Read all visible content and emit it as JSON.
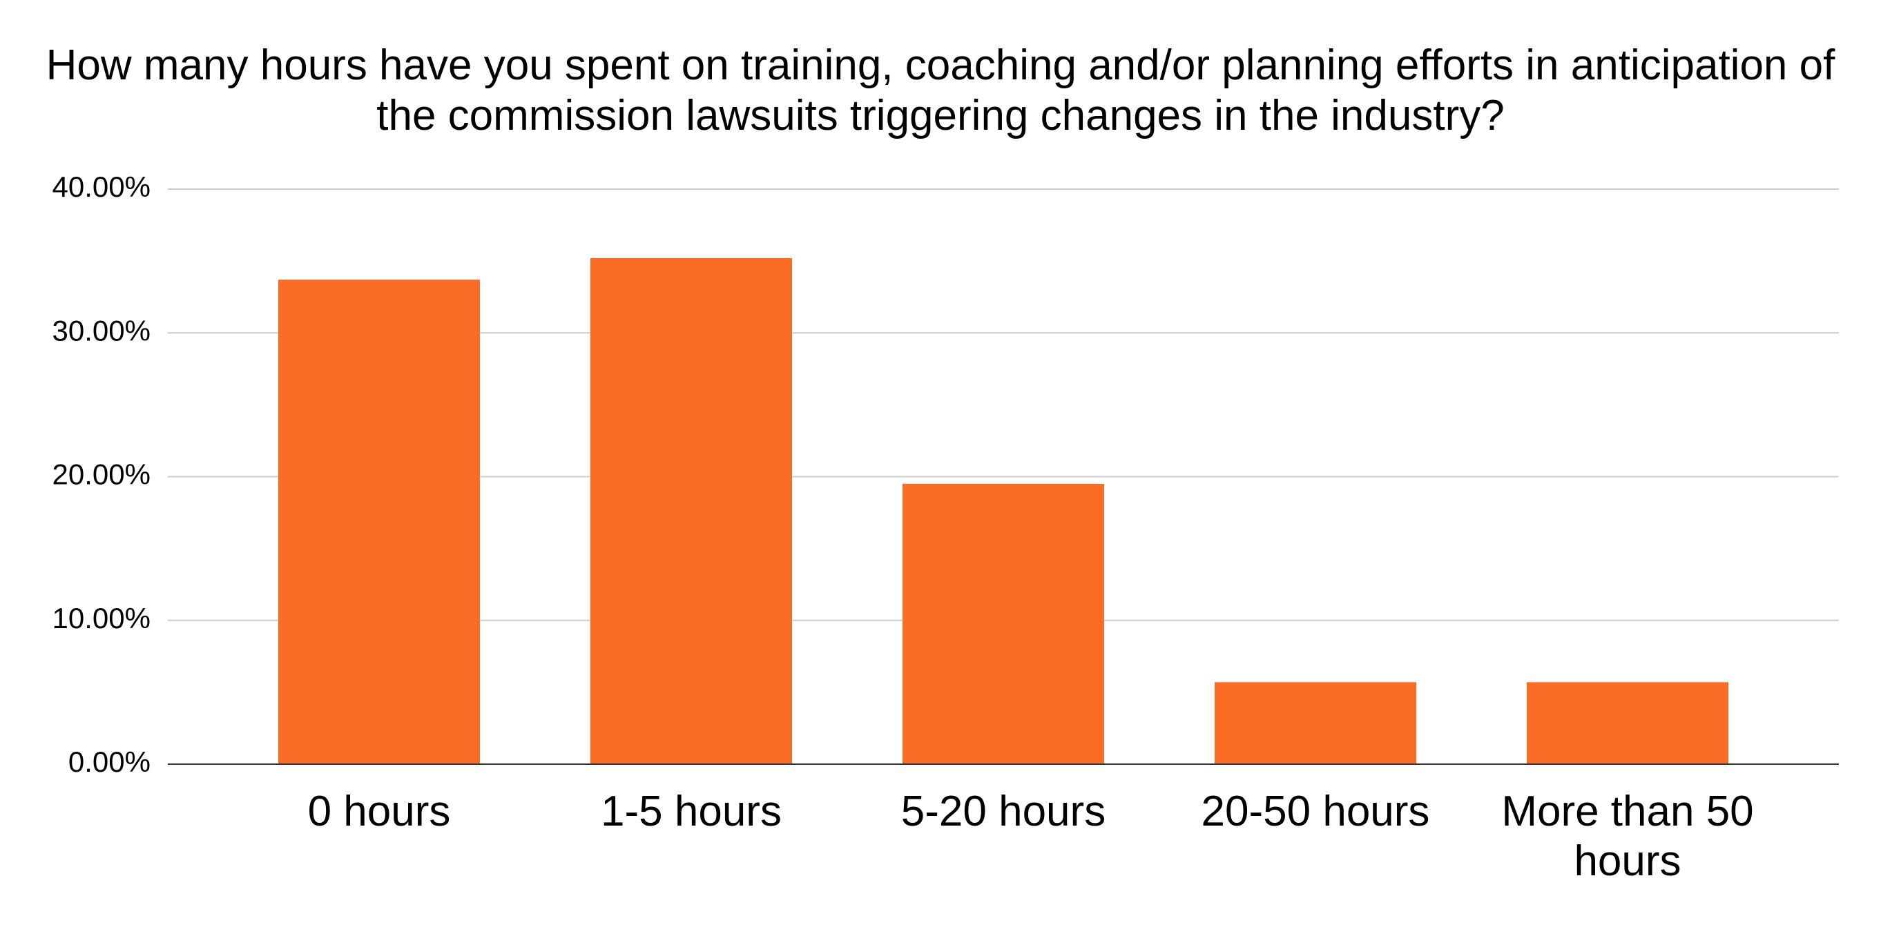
{
  "chart_data": {
    "type": "bar",
    "title": "How many hours have you spent on training, coaching and/or planning efforts in anticipation of the commission lawsuits triggering changes in the industry?",
    "categories": [
      "0 hours",
      "1-5 hours",
      "5-20 hours",
      "20-50 hours",
      "More than 50 hours"
    ],
    "values": [
      33.7,
      35.2,
      19.5,
      5.7,
      5.7
    ],
    "color": "#fb6d24",
    "ylim": [
      0,
      40
    ],
    "yticks": [
      {
        "value": 0,
        "label": "0.00%"
      },
      {
        "value": 10,
        "label": "10.00%"
      },
      {
        "value": 20,
        "label": "20.00%"
      },
      {
        "value": 30,
        "label": "30.00%"
      },
      {
        "value": 40,
        "label": "40.00%"
      }
    ],
    "grid": true
  }
}
